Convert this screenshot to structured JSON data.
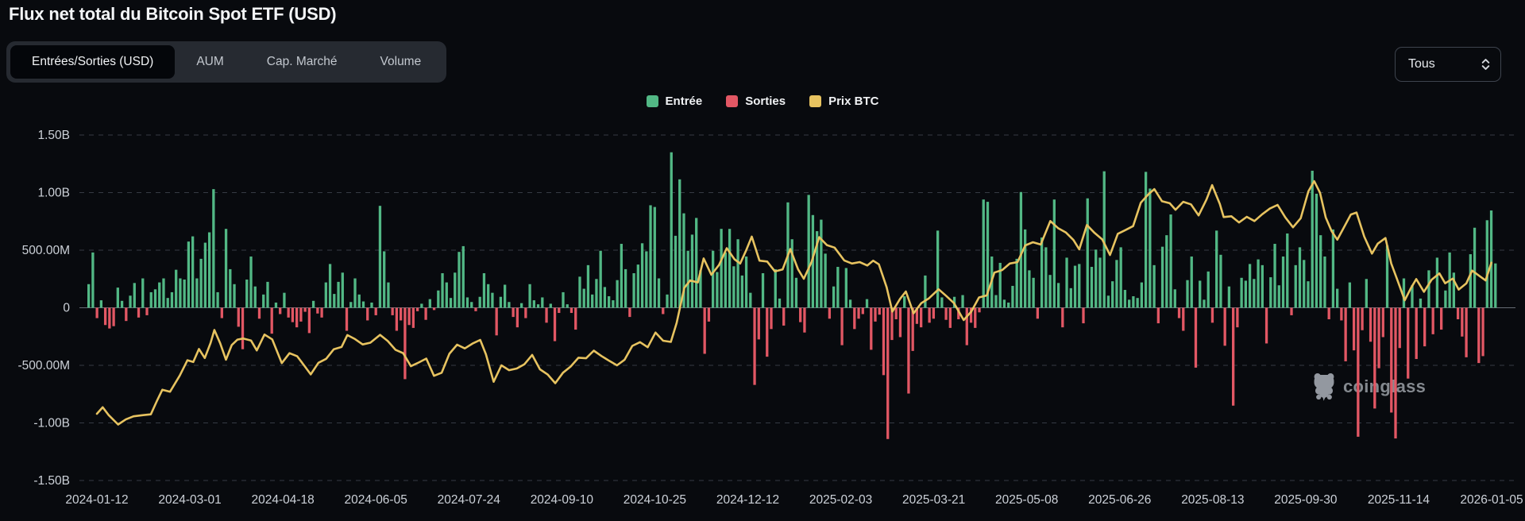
{
  "page": {
    "title": "Flux net total du Bitcoin Spot ETF (USD)"
  },
  "tabs": {
    "items": [
      {
        "label": "Entrées/Sorties (USD)",
        "active": true
      },
      {
        "label": "AUM",
        "active": false
      },
      {
        "label": "Cap. Marché",
        "active": false
      },
      {
        "label": "Volume",
        "active": false
      }
    ]
  },
  "range_select": {
    "value": "Tous"
  },
  "legend": [
    {
      "label": "Entrée",
      "color": "#52b885"
    },
    {
      "label": "Sorties",
      "color": "#e25764"
    },
    {
      "label": "Prix BTC",
      "color": "#e7c360"
    }
  ],
  "watermark": {
    "text": "coinglass"
  },
  "chart_data": {
    "type": "bar",
    "title": "Flux net total du Bitcoin Spot ETF (USD)",
    "unit": "USD",
    "grid": "dashed-horizontal",
    "legend_position": "top-center",
    "y_ticks": [
      "1.50B",
      "1.00B",
      "500.00M",
      "0",
      "-500.00M",
      "-1.00B",
      "-1.50B"
    ],
    "y_tick_values_m": [
      1500,
      1000,
      500,
      0,
      -500,
      -1000,
      -1500
    ],
    "ylim_m": [
      -1500,
      1500
    ],
    "x_tick_labels": [
      "2024-01-12",
      "2024-03-01",
      "2024-04-18",
      "2024-06-05",
      "2024-07-24",
      "2024-09-10",
      "2024-10-25",
      "2024-12-12",
      "2025-02-03",
      "2025-03-21",
      "2025-05-08",
      "2025-06-26",
      "2025-08-13",
      "2025-09-30",
      "2025-11-14",
      "2026-01-05"
    ],
    "series": [
      {
        "name": "Flux net ETF (Entrée/Sorties)",
        "type": "bar",
        "color_positive": "#52b885",
        "color_negative": "#e25764",
        "start_date": "2024-01-12",
        "end_date": "2026-01-05",
        "values_millions_usd": [
          205,
          480,
          -90,
          65,
          -150,
          -180,
          -160,
          175,
          60,
          -115,
          105,
          215,
          -85,
          255,
          -65,
          135,
          160,
          220,
          255,
          85,
          135,
          330,
          255,
          245,
          575,
          620,
          255,
          425,
          565,
          655,
          1030,
          135,
          -90,
          685,
          335,
          205,
          -165,
          -360,
          245,
          445,
          185,
          -95,
          115,
          225,
          -225,
          45,
          -55,
          130,
          -85,
          -125,
          -170,
          -120,
          -35,
          -220,
          60,
          -50,
          -85,
          220,
          380,
          120,
          225,
          305,
          -200,
          50,
          255,
          115,
          55,
          -110,
          45,
          -65,
          885,
          490,
          220,
          -65,
          -200,
          -110,
          -620,
          -150,
          -175,
          -30,
          35,
          -105,
          75,
          -20,
          150,
          300,
          220,
          85,
          305,
          485,
          535,
          90,
          50,
          -30,
          95,
          300,
          205,
          130,
          -240,
          95,
          200,
          50,
          -80,
          -170,
          40,
          -90,
          205,
          65,
          30,
          90,
          -130,
          35,
          -290,
          -45,
          135,
          30,
          -45,
          -190,
          270,
          165,
          370,
          115,
          250,
          495,
          180,
          100,
          65,
          240,
          555,
          335,
          -80,
          300,
          375,
          560,
          490,
          890,
          875,
          255,
          -55,
          115,
          1350,
          625,
          1115,
          820,
          495,
          635,
          780,
          325,
          -400,
          -120,
          495,
          310,
          685,
          480,
          685,
          360,
          595,
          280,
          445,
          130,
          -670,
          -275,
          300,
          -425,
          -185,
          335,
          80,
          -155,
          915,
          595,
          260,
          -125,
          -215,
          980,
          805,
          665,
          765,
          470,
          -95,
          185,
          355,
          -325,
          345,
          70,
          -185,
          -95,
          -55,
          75,
          -365,
          -120,
          -60,
          -585,
          -1140,
          -280,
          -100,
          -255,
          100,
          -745,
          -375,
          -140,
          -170,
          280,
          -130,
          -95,
          670,
          90,
          -105,
          -175,
          95,
          -100,
          110,
          -325,
          -130,
          -175,
          -40,
          940,
          920,
          445,
          110,
          390,
          70,
          45,
          190,
          425,
          1005,
          680,
          325,
          260,
          -95,
          610,
          525,
          285,
          940,
          215,
          -170,
          435,
          170,
          365,
          380,
          -135,
          950,
          355,
          505,
          435,
          1185,
          105,
          230,
          415,
          525,
          155,
          70,
          100,
          85,
          220,
          1180,
          1035,
          370,
          -135,
          530,
          630,
          810,
          160,
          -90,
          -200,
          240,
          445,
          -520,
          235,
          70,
          315,
          -130,
          670,
          460,
          -330,
          185,
          -850,
          -170,
          260,
          235,
          380,
          250,
          420,
          370,
          -310,
          265,
          555,
          195,
          445,
          645,
          -65,
          370,
          525,
          415,
          230,
          1190,
          990,
          630,
          445,
          -100,
          680,
          165,
          -110,
          -465,
          220,
          -370,
          -1120,
          -195,
          250,
          -295,
          -875,
          -525,
          -255,
          540,
          -910,
          -1135,
          -350,
          255,
          -615,
          195,
          -445,
          80,
          -335,
          325,
          -230,
          435,
          -190,
          150,
          480,
          305,
          -100,
          -250,
          -430,
          465,
          695,
          -480,
          -420,
          760,
          845,
          385
        ]
      },
      {
        "name": "Prix BTC",
        "type": "line",
        "color": "#e7c360",
        "x_unit": "days_since_2024-01-12",
        "y_unit": "kUSD",
        "points": [
          [
            0,
            43.5
          ],
          [
            3,
            45.8
          ],
          [
            6,
            43.1
          ],
          [
            11,
            39.7
          ],
          [
            15,
            41.5
          ],
          [
            19,
            42.6
          ],
          [
            24,
            43.0
          ],
          [
            28,
            43.3
          ],
          [
            31,
            47.8
          ],
          [
            34,
            52.0
          ],
          [
            38,
            51.3
          ],
          [
            43,
            57.0
          ],
          [
            47,
            62.4
          ],
          [
            50,
            61.8
          ],
          [
            53,
            66.4
          ],
          [
            56,
            63.2
          ],
          [
            59,
            68.5
          ],
          [
            61,
            73.1
          ],
          [
            64,
            68.4
          ],
          [
            67,
            62.6
          ],
          [
            70,
            67.8
          ],
          [
            73,
            69.7
          ],
          [
            76,
            70.1
          ],
          [
            80,
            69.4
          ],
          [
            83,
            65.9
          ],
          [
            87,
            71.5
          ],
          [
            91,
            69.8
          ],
          [
            96,
            61.4
          ],
          [
            100,
            64.9
          ],
          [
            104,
            63.8
          ],
          [
            108,
            60.2
          ],
          [
            111,
            57.4
          ],
          [
            115,
            61.5
          ],
          [
            119,
            62.9
          ],
          [
            123,
            66.3
          ],
          [
            127,
            67.1
          ],
          [
            130,
            71.3
          ],
          [
            134,
            69.9
          ],
          [
            138,
            68.0
          ],
          [
            142,
            68.6
          ],
          [
            147,
            71.4
          ],
          [
            151,
            69.2
          ],
          [
            155,
            66.1
          ],
          [
            159,
            64.9
          ],
          [
            163,
            60.3
          ],
          [
            167,
            61.6
          ],
          [
            171,
            63.0
          ],
          [
            175,
            56.9
          ],
          [
            179,
            58.0
          ],
          [
            183,
            64.7
          ],
          [
            187,
            67.9
          ],
          [
            191,
            66.6
          ],
          [
            195,
            68.3
          ],
          [
            199,
            69.6
          ],
          [
            202,
            64.5
          ],
          [
            206,
            54.8
          ],
          [
            210,
            60.6
          ],
          [
            214,
            58.9
          ],
          [
            218,
            59.5
          ],
          [
            222,
            61.0
          ],
          [
            226,
            64.3
          ],
          [
            230,
            59.2
          ],
          [
            234,
            57.4
          ],
          [
            238,
            54.3
          ],
          [
            242,
            58.0
          ],
          [
            246,
            60.2
          ],
          [
            250,
            63.3
          ],
          [
            254,
            63.1
          ],
          [
            258,
            65.8
          ],
          [
            262,
            63.9
          ],
          [
            266,
            62.2
          ],
          [
            270,
            60.6
          ],
          [
            274,
            62.6
          ],
          [
            278,
            67.5
          ],
          [
            282,
            68.8
          ],
          [
            286,
            67.0
          ],
          [
            290,
            72.2
          ],
          [
            294,
            69.3
          ],
          [
            298,
            68.9
          ],
          [
            301,
            75.6
          ],
          [
            305,
            88.0
          ],
          [
            308,
            90.6
          ],
          [
            312,
            89.9
          ],
          [
            315,
            98.4
          ],
          [
            319,
            92.6
          ],
          [
            323,
            96.1
          ],
          [
            327,
            102.0
          ],
          [
            331,
            98.1
          ],
          [
            334,
            96.6
          ],
          [
            337,
            101.1
          ],
          [
            340,
            106.1
          ],
          [
            344,
            97.6
          ],
          [
            348,
            97.3
          ],
          [
            352,
            93.8
          ],
          [
            356,
            94.5
          ],
          [
            360,
            101.7
          ],
          [
            364,
            94.6
          ],
          [
            367,
            91.2
          ],
          [
            371,
            97.1
          ],
          [
            375,
            105.9
          ],
          [
            379,
            103.1
          ],
          [
            383,
            102.2
          ],
          [
            388,
            97.7
          ],
          [
            392,
            96.6
          ],
          [
            396,
            97.1
          ],
          [
            400,
            95.9
          ],
          [
            403,
            97.6
          ],
          [
            406,
            96.3
          ],
          [
            410,
            88.2
          ],
          [
            413,
            79.6
          ],
          [
            417,
            84.1
          ],
          [
            420,
            86.7
          ],
          [
            424,
            79.0
          ],
          [
            428,
            82.6
          ],
          [
            432,
            84.3
          ],
          [
            437,
            87.5
          ],
          [
            441,
            85.1
          ],
          [
            445,
            82.6
          ],
          [
            450,
            76.6
          ],
          [
            454,
            79.6
          ],
          [
            458,
            84.6
          ],
          [
            462,
            85.3
          ],
          [
            466,
            93.4
          ],
          [
            470,
            94.3
          ],
          [
            474,
            96.6
          ],
          [
            478,
            97.1
          ],
          [
            482,
            103.0
          ],
          [
            486,
            104.1
          ],
          [
            490,
            103.3
          ],
          [
            495,
            111.6
          ],
          [
            499,
            109.1
          ],
          [
            503,
            107.6
          ],
          [
            507,
            104.9
          ],
          [
            510,
            101.6
          ],
          [
            514,
            110.2
          ],
          [
            518,
            107.4
          ],
          [
            522,
            105.1
          ],
          [
            526,
            99.6
          ],
          [
            530,
            107.1
          ],
          [
            534,
            108.4
          ],
          [
            538,
            109.8
          ],
          [
            542,
            118.1
          ],
          [
            546,
            121.1
          ],
          [
            549,
            122.9
          ],
          [
            553,
            118.6
          ],
          [
            557,
            117.9
          ],
          [
            560,
            115.6
          ],
          [
            564,
            118.4
          ],
          [
            568,
            117.5
          ],
          [
            572,
            113.6
          ],
          [
            576,
            119.1
          ],
          [
            579,
            124.3
          ],
          [
            583,
            117.6
          ],
          [
            585,
            113.0
          ],
          [
            589,
            113.3
          ],
          [
            593,
            111.1
          ],
          [
            597,
            113.1
          ],
          [
            601,
            111.6
          ],
          [
            605,
            114.0
          ],
          [
            609,
            116.0
          ],
          [
            613,
            117.3
          ],
          [
            617,
            112.9
          ],
          [
            621,
            109.4
          ],
          [
            625,
            112.6
          ],
          [
            629,
            122.1
          ],
          [
            632,
            125.7
          ],
          [
            635,
            121.6
          ],
          [
            638,
            112.9
          ],
          [
            641,
            108.1
          ],
          [
            644,
            105.0
          ],
          [
            648,
            110.1
          ],
          [
            651,
            113.9
          ],
          [
            654,
            114.6
          ],
          [
            658,
            106.1
          ],
          [
            662,
            100.1
          ],
          [
            665,
            103.6
          ],
          [
            669,
            105.6
          ],
          [
            672,
            96.6
          ],
          [
            675,
            91.1
          ],
          [
            679,
            83.6
          ],
          [
            682,
            87.6
          ],
          [
            685,
            91.1
          ],
          [
            689,
            86.6
          ],
          [
            693,
            90.9
          ],
          [
            697,
            93.1
          ],
          [
            700,
            89.6
          ],
          [
            704,
            91.3
          ],
          [
            707,
            87.4
          ],
          [
            711,
            89.6
          ],
          [
            714,
            94.1
          ],
          [
            718,
            92.1
          ],
          [
            721,
            90.6
          ],
          [
            724,
            96.9
          ]
        ]
      }
    ]
  }
}
